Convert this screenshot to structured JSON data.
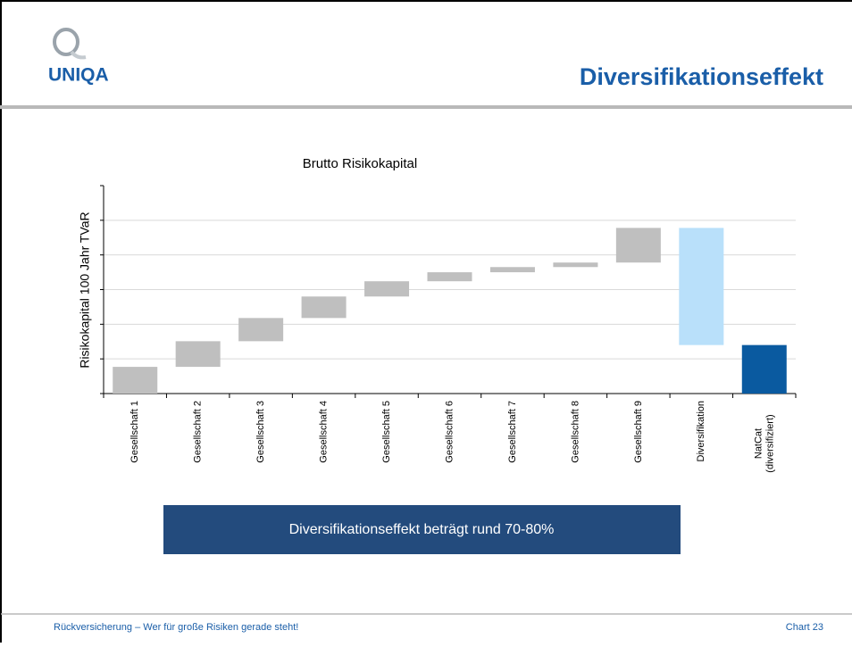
{
  "header": {
    "logo": "UNIQA",
    "title": "Diversifikationseffekt"
  },
  "chart_data": {
    "type": "waterfall",
    "title": "Brutto Risikokapital",
    "y_label": "Risikokapital 100 Jahr TVaR",
    "categories": [
      "Gesellschaft 1",
      "Gesellschaft 2",
      "Gesellschaft 3",
      "Gesellschaft 4",
      "Gesellschaft 5",
      "Gesellschaft 6",
      "Gesellschaft 7",
      "Gesellschaft 8",
      "Gesellschaft 9",
      "Diversifikation",
      "NatCat\n(diversifiziert)"
    ],
    "values": [
      0.77,
      0.74,
      0.67,
      0.62,
      0.44,
      0.26,
      0.15,
      0.13,
      1.0,
      -3.38,
      1.4
    ],
    "colors": [
      "#bfbfbf",
      "#bfbfbf",
      "#bfbfbf",
      "#bfbfbf",
      "#bfbfbf",
      "#bfbfbf",
      "#bfbfbf",
      "#bfbfbf",
      "#bfbfbf",
      "#b9e0fa",
      "#0a5aa0"
    ],
    "last_is_total": true,
    "ylim": [
      0,
      6
    ],
    "yticks": [
      0,
      1,
      2,
      3,
      4,
      5,
      6
    ],
    "grid": true
  },
  "banner": "Diversifikationseffekt  beträgt rund 70-80%",
  "footer": {
    "text": "Rückversicherung – Wer für große Risiken gerade steht!",
    "page": "Chart 23"
  }
}
